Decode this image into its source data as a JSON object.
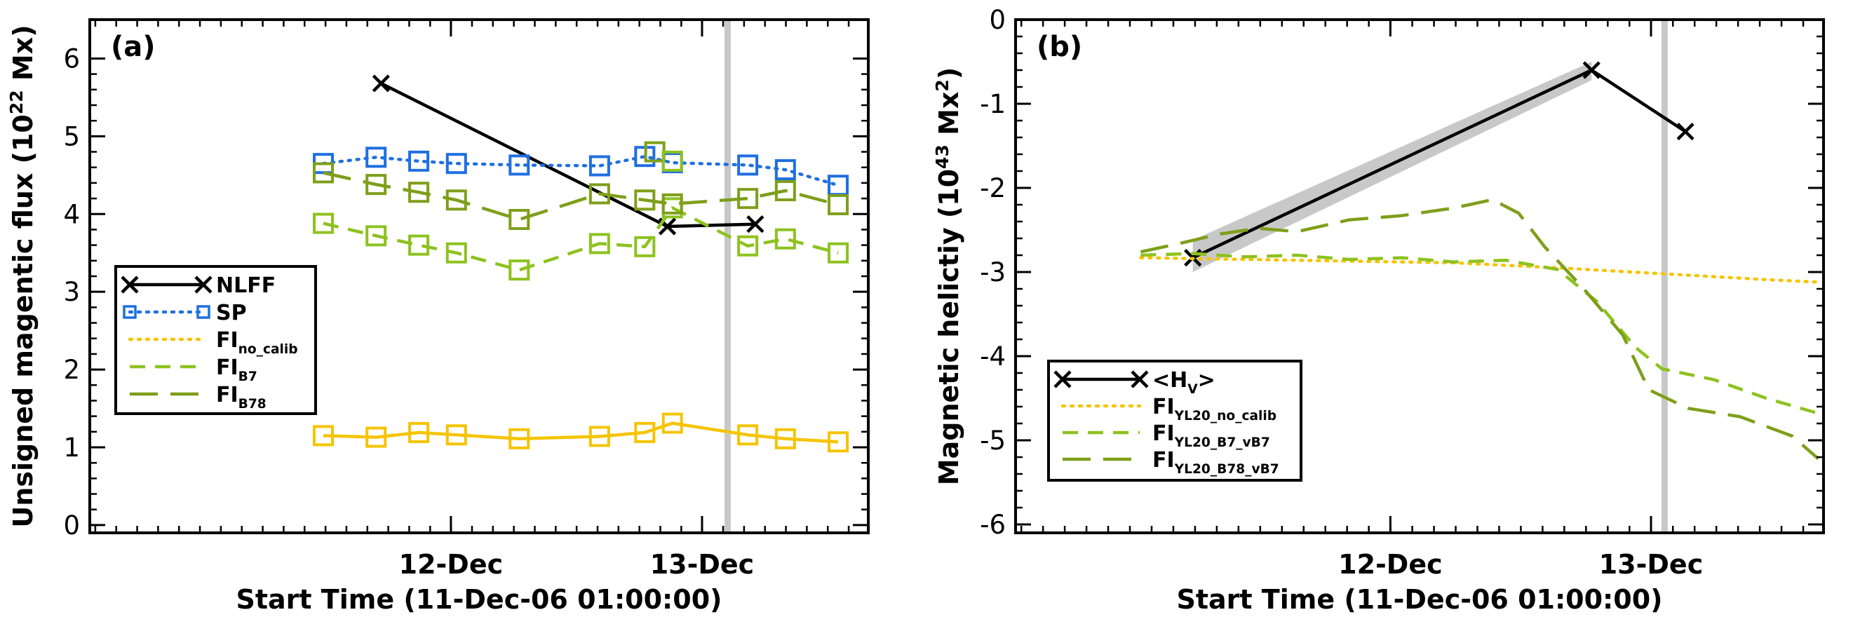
{
  "chart_data": [
    {
      "type": "line",
      "panel_label": "(a)",
      "xlabel": "Start Time (11-Dec-06 01:00:00)",
      "ylabel": "Unsigned magentic flux (10",
      "ylabel_sup": "22",
      "ylabel_tail": " Mx)",
      "ylim": [
        -0.1,
        6.5
      ],
      "xlim": [
        -0.48,
        2.62
      ],
      "x_unit": "days since start time",
      "yticks": [
        0,
        1,
        2,
        3,
        4,
        5,
        6
      ],
      "xticks": [
        {
          "x": 0.958,
          "label": "12-Dec"
        },
        {
          "x": 1.958,
          "label": "13-Dec"
        }
      ],
      "vline_x": 2.06,
      "series": [
        {
          "name": "NLFF",
          "sub": "",
          "style": "solid-x",
          "color": "#000000",
          "x": [
            0.68,
            1.82,
            2.17
          ],
          "y": [
            5.68,
            3.84,
            3.87
          ]
        },
        {
          "name": "SP",
          "sub": "",
          "style": "dotted-square",
          "color": "#1f6fe0",
          "x": [
            0.45,
            0.66,
            0.83,
            0.98,
            1.23,
            1.55,
            1.73,
            1.84,
            2.14,
            2.29,
            2.5
          ],
          "y": [
            4.65,
            4.73,
            4.68,
            4.65,
            4.63,
            4.62,
            4.74,
            4.66,
            4.63,
            4.57,
            4.37
          ]
        },
        {
          "name": "FI",
          "sub": "no_calib",
          "style": "dotted",
          "color": "#f5c400",
          "x": [],
          "y": []
        },
        {
          "name": "FI",
          "sub": "B7",
          "style": "dashed-square",
          "color": "#8dc21f",
          "x": [
            0.45,
            0.66,
            0.83,
            0.98,
            1.23,
            1.55,
            1.73,
            1.84,
            2.14,
            2.29,
            2.5
          ],
          "y": [
            3.88,
            3.72,
            3.6,
            3.5,
            3.28,
            3.62,
            3.58,
            4.08,
            3.59,
            3.68,
            3.5
          ]
        },
        {
          "name": "FI",
          "sub": "B78",
          "style": "longdash-square",
          "color": "#7e9f1a",
          "x": [
            0.45,
            0.66,
            0.83,
            0.98,
            1.23,
            1.55,
            1.73,
            1.84,
            2.14,
            2.29,
            2.5
          ],
          "y": [
            4.53,
            4.38,
            4.28,
            4.18,
            3.93,
            4.26,
            4.18,
            4.13,
            4.2,
            4.3,
            4.12
          ]
        },
        {
          "name": "FI",
          "sub": "no_calib",
          "style": "solid-square",
          "color": "#f5c400",
          "x": [
            0.45,
            0.66,
            0.83,
            0.98,
            1.23,
            1.55,
            1.73,
            1.84,
            2.14,
            2.29,
            2.5
          ],
          "y": [
            1.15,
            1.13,
            1.19,
            1.16,
            1.11,
            1.14,
            1.19,
            1.31,
            1.16,
            1.11,
            1.07
          ]
        }
      ],
      "extra_markers": [
        {
          "x": 1.77,
          "y": 4.8,
          "color": "#7e9f1a"
        },
        {
          "x": 1.84,
          "y": 4.68,
          "color": "#8dc21f"
        }
      ],
      "legend": {
        "position": "left",
        "entries": [
          {
            "name": "NLFF",
            "sub": "",
            "color": "#000000",
            "label_color": "#000000",
            "style": "solid-x"
          },
          {
            "name": "SP",
            "sub": "",
            "color": "#1f6fe0",
            "label_color": "#1f6fe0",
            "style": "dotted-square"
          },
          {
            "name": "FI",
            "sub": "no_calib",
            "color": "#f5c400",
            "label_color": "#f5c400",
            "style": "dotted"
          },
          {
            "name": "FI",
            "sub": "B7",
            "color": "#8dc21f",
            "label_color": "#8dc21f",
            "style": "dashed"
          },
          {
            "name": "FI",
            "sub": "B78",
            "color": "#7e9f1a",
            "label_color": "#7e9f1a",
            "style": "longdash"
          }
        ]
      }
    },
    {
      "type": "line",
      "panel_label": "(b)",
      "xlabel": "Start Time (11-Dec-06 01:00:00)",
      "ylabel": "Magnetic helictiy (10",
      "ylabel_sup": "43",
      "ylabel_tail": " Mx",
      "ylabel_sup2": "2",
      "ylabel_end": ")",
      "ylim": [
        -6.1,
        0
      ],
      "xlim": [
        -0.48,
        2.62
      ],
      "x_unit": "days since start time",
      "yticks": [
        0,
        -1,
        -2,
        -3,
        -4,
        -5,
        -6
      ],
      "xticks": [
        {
          "x": 0.958,
          "label": "12-Dec"
        },
        {
          "x": 1.958,
          "label": "13-Dec"
        }
      ],
      "vline_x": 2.01,
      "band": {
        "x": [
          0.2,
          1.73
        ],
        "y_low": [
          -3.0,
          -0.72
        ],
        "y_high": [
          -2.62,
          -0.5
        ],
        "color": "#c8c8c8"
      },
      "series": [
        {
          "name": "<H",
          "sub": "V",
          "suffix": ">",
          "style": "solid-x",
          "color": "#000000",
          "x": [
            0.2,
            1.73,
            2.09
          ],
          "y": [
            -2.83,
            -0.6,
            -1.33
          ]
        },
        {
          "name": "FI",
          "sub": "YL20_no_calib",
          "style": "dotted",
          "color": "#f5c400",
          "x": [
            0.0,
            0.4,
            0.8,
            1.2,
            1.6,
            2.0,
            2.4,
            2.6
          ],
          "y": [
            -2.83,
            -2.85,
            -2.87,
            -2.89,
            -2.95,
            -3.02,
            -3.09,
            -3.12
          ]
        },
        {
          "name": "FI",
          "sub": "YL20_B7_vB7",
          "style": "dashed",
          "color": "#8dc21f",
          "x": [
            0.0,
            0.2,
            0.4,
            0.6,
            0.8,
            1.0,
            1.2,
            1.4,
            1.6,
            1.75,
            1.9,
            2.0,
            2.2,
            2.4,
            2.6
          ],
          "y": [
            -2.8,
            -2.78,
            -2.82,
            -2.8,
            -2.85,
            -2.83,
            -2.88,
            -2.86,
            -2.97,
            -3.35,
            -3.9,
            -4.15,
            -4.28,
            -4.5,
            -4.68
          ]
        },
        {
          "name": "FI",
          "sub": "YL20_B78_vB7",
          "style": "longdash",
          "color": "#7e9f1a",
          "x": [
            0.0,
            0.15,
            0.3,
            0.45,
            0.6,
            0.8,
            1.0,
            1.2,
            1.35,
            1.45,
            1.55,
            1.7,
            1.85,
            1.95,
            2.1,
            2.3,
            2.5,
            2.6
          ],
          "y": [
            -2.76,
            -2.66,
            -2.55,
            -2.48,
            -2.52,
            -2.38,
            -2.33,
            -2.24,
            -2.14,
            -2.3,
            -2.7,
            -3.2,
            -3.75,
            -4.4,
            -4.62,
            -4.72,
            -4.95,
            -5.22
          ]
        }
      ],
      "legend": {
        "position": "bottom-left",
        "entries": [
          {
            "name": "<H",
            "sub": "V",
            "suffix": ">",
            "color": "#000000",
            "label_color": "#000000",
            "style": "solid-x"
          },
          {
            "name": "FI",
            "sub": "YL20_no_calib",
            "color": "#f5c400",
            "label_color": "#f5c400",
            "style": "dotted"
          },
          {
            "name": "FI",
            "sub": "YL20_B7_vB7",
            "color": "#8dc21f",
            "label_color": "#8dc21f",
            "style": "dashed"
          },
          {
            "name": "FI",
            "sub": "YL20_B78_vB7",
            "color": "#7e9f1a",
            "label_color": "#7e9f1a",
            "style": "longdash"
          }
        ]
      }
    }
  ]
}
